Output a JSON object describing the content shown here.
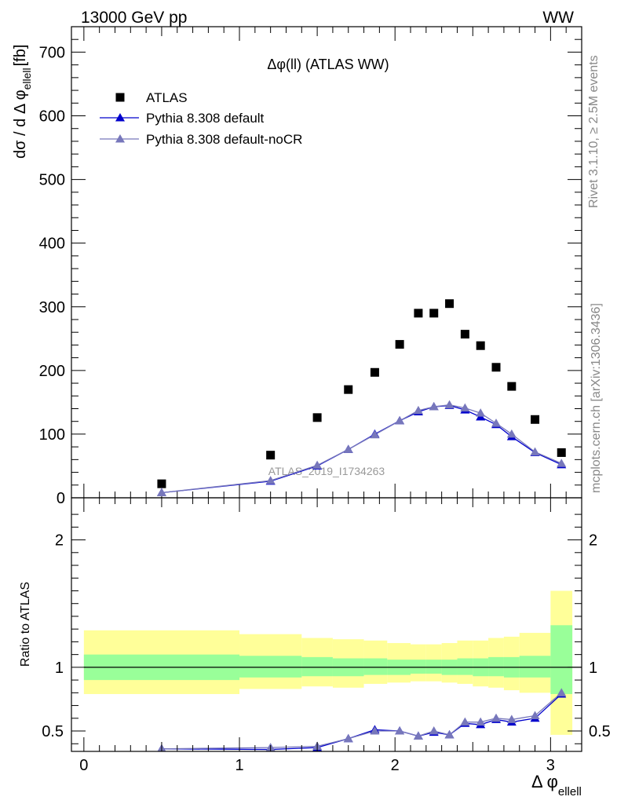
{
  "header": {
    "left": "13000 GeV pp",
    "right": "WW"
  },
  "side_labels": {
    "rivet": "Rivet 3.1.10, ≥ 2.5M events",
    "mcplots": "mcplots.cern.ch [arXiv:1306.3436]"
  },
  "colors": {
    "data": "#000000",
    "default": "#0000cc",
    "nocr": "#7777bb",
    "band_inner": "#99ff99",
    "band_outer": "#ffff99"
  },
  "chart_data": [
    {
      "type": "scatter",
      "panel": "main",
      "title": "Δφ(ll) (ATLAS WW)",
      "ylabel_main": "dσ / d Δ φ",
      "ylabel_sub": "ellell",
      "ylabel_unit": "[fb]",
      "watermark": "ATLAS_2019_I1734263",
      "xlim": [
        -0.08,
        3.2
      ],
      "ylim": [
        0,
        740
      ],
      "yticks": [
        0,
        100,
        200,
        300,
        400,
        500,
        600,
        700
      ],
      "legend": {
        "position": "top-left",
        "entries": [
          "ATLAS",
          "Pythia 8.308 default",
          "Pythia 8.308 default-noCR"
        ]
      },
      "series": [
        {
          "name": "ATLAS",
          "style": "marker-square",
          "x": [
            0.5,
            1.2,
            1.5,
            1.7,
            1.87,
            2.03,
            2.15,
            2.25,
            2.35,
            2.45,
            2.55,
            2.65,
            2.75,
            2.9,
            3.07
          ],
          "y": [
            22,
            67,
            126,
            170,
            197,
            241,
            290,
            290,
            305,
            257,
            239,
            205,
            175,
            123,
            71
          ]
        },
        {
          "name": "Pythia 8.308 default",
          "style": "line-triangle",
          "x": [
            0.5,
            1.2,
            1.5,
            1.7,
            1.87,
            2.03,
            2.15,
            2.25,
            2.35,
            2.45,
            2.55,
            2.65,
            2.75,
            2.9,
            3.07
          ],
          "y": [
            8,
            26,
            50,
            76,
            100,
            121,
            135,
            143,
            145,
            138,
            127,
            115,
            96,
            71,
            52
          ]
        },
        {
          "name": "Pythia 8.308 default-noCR",
          "style": "line-triangle",
          "x": [
            0.5,
            1.2,
            1.5,
            1.7,
            1.87,
            2.03,
            2.15,
            2.25,
            2.35,
            2.45,
            2.55,
            2.65,
            2.75,
            2.9,
            3.07
          ],
          "y": [
            8,
            27,
            51,
            76,
            99,
            121,
            137,
            143,
            146,
            141,
            133,
            117,
            100,
            72,
            54
          ]
        }
      ]
    },
    {
      "type": "line",
      "panel": "ratio",
      "ylabel": "Ratio to ATLAS",
      "xlabel_main": "Δ φ",
      "xlabel_sub": "ellell",
      "xlim": [
        -0.08,
        3.2
      ],
      "ylim": [
        0.34,
        2.33
      ],
      "xticks": [
        0,
        1,
        2,
        3
      ],
      "yticks": [
        0.5,
        1,
        2
      ],
      "bands": {
        "edges": [
          0,
          1,
          1.4,
          1.6,
          1.8,
          1.95,
          2.1,
          2.2,
          2.3,
          2.4,
          2.5,
          2.6,
          2.7,
          2.8,
          3.0,
          3.14
        ],
        "inner_lo": [
          0.9,
          0.92,
          0.93,
          0.93,
          0.94,
          0.94,
          0.95,
          0.95,
          0.94,
          0.94,
          0.93,
          0.93,
          0.92,
          0.92,
          0.79
        ],
        "inner_hi": [
          1.1,
          1.09,
          1.08,
          1.07,
          1.07,
          1.06,
          1.06,
          1.06,
          1.06,
          1.07,
          1.07,
          1.08,
          1.08,
          1.09,
          1.33
        ],
        "outer_lo": [
          0.79,
          0.83,
          0.85,
          0.84,
          0.87,
          0.88,
          0.89,
          0.89,
          0.88,
          0.87,
          0.85,
          0.84,
          0.82,
          0.8,
          0.47
        ],
        "outer_hi": [
          1.29,
          1.26,
          1.23,
          1.22,
          1.21,
          1.19,
          1.18,
          1.18,
          1.19,
          1.21,
          1.21,
          1.23,
          1.24,
          1.27,
          1.6
        ]
      },
      "series": [
        {
          "name": "Pythia 8.308 default",
          "x": [
            0.5,
            1.2,
            1.5,
            1.7,
            1.87,
            2.03,
            2.15,
            2.25,
            2.35,
            2.45,
            2.55,
            2.65,
            2.75,
            2.9,
            3.07
          ],
          "y": [
            0.36,
            0.355,
            0.37,
            0.44,
            0.51,
            0.5,
            0.46,
            0.49,
            0.47,
            0.56,
            0.55,
            0.59,
            0.57,
            0.6,
            0.79
          ]
        },
        {
          "name": "Pythia 8.308 default-noCR",
          "x": [
            0.5,
            1.2,
            1.5,
            1.7,
            1.87,
            2.03,
            2.15,
            2.25,
            2.35,
            2.45,
            2.55,
            2.65,
            2.75,
            2.9,
            3.07
          ],
          "y": [
            0.36,
            0.37,
            0.38,
            0.44,
            0.5,
            0.5,
            0.46,
            0.5,
            0.47,
            0.57,
            0.57,
            0.6,
            0.59,
            0.62,
            0.8
          ]
        }
      ]
    }
  ]
}
